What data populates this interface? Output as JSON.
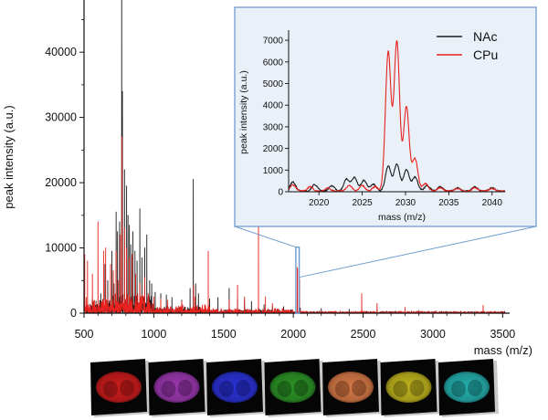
{
  "colors": {
    "nac": "#1a1a1a",
    "cpu": "#e8221e",
    "zoom": "#6f9ccf",
    "inset_bg": "#e9f0f8",
    "axis": "#111111"
  },
  "chart_data": [
    {
      "type": "line",
      "xlabel": "mass (m/z)",
      "ylabel": "peak intensity (a.u.)",
      "xlim": [
        500,
        3550
      ],
      "ylim": [
        0,
        48000
      ],
      "x_ticks": [
        500,
        1000,
        1500,
        2000,
        2500,
        3000,
        3500
      ],
      "y_ticks": [
        0,
        10000,
        20000,
        30000,
        40000
      ],
      "zoom_window": {
        "x": [
          2018,
          2042
        ],
        "y": [
          0,
          9000
        ]
      },
      "series": [
        {
          "name": "NAc",
          "color": "#1a1a1a",
          "peaks": [
            [
              560,
              2200
            ],
            [
              620,
              3000
            ],
            [
              650,
              7500
            ],
            [
              670,
              5000
            ],
            [
              690,
              3500
            ],
            [
              700,
              9500
            ],
            [
              715,
              4500
            ],
            [
              730,
              15500
            ],
            [
              740,
              12500
            ],
            [
              755,
              14000
            ],
            [
              770,
              48000
            ],
            [
              775,
              34000
            ],
            [
              790,
              22000
            ],
            [
              805,
              19500
            ],
            [
              815,
              15000
            ],
            [
              825,
              13500
            ],
            [
              835,
              10500
            ],
            [
              850,
              12500
            ],
            [
              865,
              9500
            ],
            [
              880,
              8000
            ],
            [
              900,
              16000
            ],
            [
              915,
              8500
            ],
            [
              935,
              10000
            ],
            [
              950,
              12000
            ],
            [
              970,
              5000
            ],
            [
              985,
              4500
            ],
            [
              1010,
              3200
            ],
            [
              1050,
              3000
            ],
            [
              1090,
              2800
            ],
            [
              1130,
              2400
            ],
            [
              1200,
              2000
            ],
            [
              1260,
              3800
            ],
            [
              1283,
              20500
            ],
            [
              1300,
              4500
            ],
            [
              1320,
              3000
            ],
            [
              1400,
              2200
            ],
            [
              1460,
              2400
            ],
            [
              1540,
              3800
            ],
            [
              1600,
              2200
            ],
            [
              1650,
              2000
            ],
            [
              1700,
              1800
            ],
            [
              1790,
              1300
            ],
            [
              1850,
              1100
            ],
            [
              1930,
              1000
            ],
            [
              2050,
              800
            ],
            [
              2200,
              700
            ],
            [
              2400,
              600
            ],
            [
              2600,
              500
            ],
            [
              2900,
              400
            ],
            [
              3200,
              300
            ]
          ],
          "noise_level": 700
        },
        {
          "name": "CPu",
          "color": "#e8221e",
          "peaks": [
            [
              505,
              9000
            ],
            [
              525,
              8000
            ],
            [
              560,
              6000
            ],
            [
              600,
              14000
            ],
            [
              640,
              9500
            ],
            [
              655,
              10000
            ],
            [
              690,
              7500
            ],
            [
              710,
              6500
            ],
            [
              730,
              9500
            ],
            [
              745,
              5000
            ],
            [
              760,
              12000
            ],
            [
              772,
              27000
            ],
            [
              790,
              13000
            ],
            [
              805,
              10000
            ],
            [
              825,
              8500
            ],
            [
              845,
              9000
            ],
            [
              870,
              6000
            ],
            [
              900,
              4500
            ],
            [
              935,
              5500
            ],
            [
              960,
              3000
            ],
            [
              1000,
              2500
            ],
            [
              1050,
              2200
            ],
            [
              1100,
              2000
            ],
            [
              1200,
              1800
            ],
            [
              1285,
              4200
            ],
            [
              1295,
              2500
            ],
            [
              1390,
              9500
            ],
            [
              1540,
              2000
            ],
            [
              1600,
              4300
            ],
            [
              1650,
              2500
            ],
            [
              1750,
              19000
            ],
            [
              1800,
              2500
            ],
            [
              1850,
              1500
            ],
            [
              2028,
              7000
            ],
            [
              2030,
              6800
            ],
            [
              2045,
              5200
            ],
            [
              2490,
              3000
            ],
            [
              2600,
              1500
            ],
            [
              2800,
              900
            ],
            [
              3360,
              1200
            ]
          ],
          "noise_level": 800
        }
      ]
    },
    {
      "type": "line",
      "xlabel": "mass (m/z)",
      "ylabel": "peak intensity (a.u.)",
      "xlim": [
        2016.5,
        2041.5
      ],
      "ylim": [
        0,
        7300
      ],
      "x_ticks": [
        2020,
        2025,
        2030,
        2035,
        2040
      ],
      "y_ticks": [
        0,
        1000,
        2000,
        3000,
        4000,
        5000,
        6000,
        7000
      ],
      "legend": "top-right",
      "series": [
        {
          "name": "NAc",
          "color": "#1a1a1a",
          "peaks": [
            [
              2017.0,
              420
            ],
            [
              2019.5,
              300
            ],
            [
              2021.5,
              250
            ],
            [
              2023.2,
              550
            ],
            [
              2024.1,
              620
            ],
            [
              2025.2,
              500
            ],
            [
              2026.3,
              320
            ],
            [
              2028.0,
              1150
            ],
            [
              2029.0,
              1250
            ],
            [
              2030.1,
              1000
            ],
            [
              2031.1,
              650
            ],
            [
              2032.5,
              250
            ],
            [
              2034.0,
              200
            ],
            [
              2036.0,
              150
            ],
            [
              2038.0,
              200
            ],
            [
              2040.0,
              150
            ]
          ]
        },
        {
          "name": "CPu",
          "color": "#e8221e",
          "peaks": [
            [
              2017.0,
              280
            ],
            [
              2019.0,
              200
            ],
            [
              2021.0,
              150
            ],
            [
              2023.5,
              250
            ],
            [
              2025.0,
              250
            ],
            [
              2026.5,
              200
            ],
            [
              2028.0,
              6400
            ],
            [
              2029.0,
              6900
            ],
            [
              2030.1,
              3900
            ],
            [
              2031.1,
              1500
            ],
            [
              2032.3,
              350
            ],
            [
              2034.0,
              150
            ],
            [
              2036.0,
              120
            ],
            [
              2038.0,
              150
            ],
            [
              2040.0,
              120
            ]
          ]
        }
      ]
    }
  ],
  "image_strip": {
    "tiles": [
      {
        "name": "red",
        "color": "#d61d1d",
        "dark": "#3a0505"
      },
      {
        "name": "magenta",
        "color": "#a33ab8",
        "dark": "#26092c"
      },
      {
        "name": "blue",
        "color": "#2c34e0",
        "dark": "#07093a"
      },
      {
        "name": "green",
        "color": "#2e9a27",
        "dark": "#061f06"
      },
      {
        "name": "orange",
        "color": "#e07f4a",
        "dark": "#3a1708"
      },
      {
        "name": "yellow",
        "color": "#c9bc1e",
        "dark": "#2e2b05"
      },
      {
        "name": "cyan",
        "color": "#25b7b5",
        "dark": "#062c2c"
      }
    ]
  }
}
